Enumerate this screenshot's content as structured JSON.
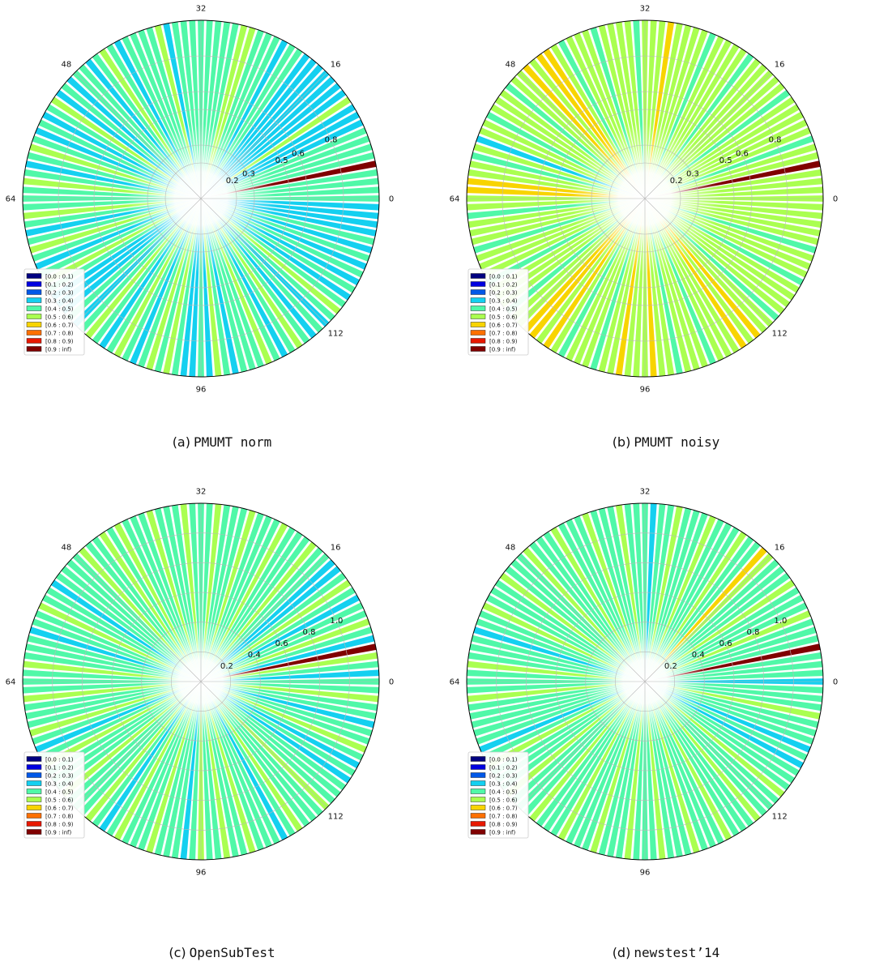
{
  "legend": {
    "entries": [
      "[0.0 : 0.1)",
      "[0.1 : 0.2)",
      "[0.2 : 0.3)",
      "[0.3 : 0.4)",
      "[0.4 : 0.5)",
      "[0.5 : 0.6)",
      "[0.6 : 0.7)",
      "[0.7 : 0.8)",
      "[0.8 : 0.9)",
      "[0.9 : inf)"
    ],
    "colors": [
      "#000080",
      "#0000e0",
      "#0058e8",
      "#14d0f0",
      "#50f8a8",
      "#aaff50",
      "#f8d400",
      "#ff7000",
      "#e81800",
      "#800000"
    ],
    "placement": "lower-left"
  },
  "chart_data": [
    {
      "type": "polar-bar",
      "caption_label": "(a)",
      "caption_code": "PMUMT norm",
      "angular_ticks": [
        "0",
        "16",
        "32",
        "48",
        "64",
        "96",
        "112"
      ],
      "angular_tick_positions": [
        0,
        16,
        32,
        48,
        64,
        96,
        112
      ],
      "radial_ticks": [
        "0.2",
        "0.3",
        "0.5",
        "0.6",
        "0.8"
      ],
      "radial_tick_values": [
        0.2,
        0.3,
        0.5,
        0.6,
        0.8
      ],
      "rmax": 1.0,
      "num_bars": 128,
      "default_bin": 4,
      "bar_bins": {
        "4": 9,
        "9": 3,
        "10": 3,
        "11": 3,
        "12": 5,
        "13": 3,
        "14": 3,
        "15": 3,
        "16": 3,
        "17": 3,
        "18": 3,
        "19": 3,
        "22": 3,
        "26": 5,
        "27": 5,
        "36": 3,
        "37": 5,
        "42": 3,
        "44": 5,
        "46": 3,
        "49": 3,
        "51": 3,
        "52": 5,
        "54": 3,
        "56": 3,
        "58": 5,
        "60": 3,
        "62": 5,
        "66": 5,
        "68": 3,
        "70": 5,
        "72": 3,
        "74": 5,
        "76": 3,
        "77": 3,
        "78": 3,
        "80": 3,
        "82": 5,
        "84": 3,
        "86": 5,
        "88": 3,
        "90": 5,
        "92": 5,
        "94": 3,
        "95": 3,
        "97": 3,
        "98": 5,
        "100": 3,
        "104": 5,
        "106": 3,
        "108": 5,
        "110": 3,
        "112": 3,
        "114": 5,
        "116": 3,
        "118": 3,
        "120": 3,
        "122": 3,
        "124": 3,
        "125": 3,
        "126": 3,
        "127": 3
      }
    },
    {
      "type": "polar-bar",
      "caption_label": "(b)",
      "caption_code": "PMUMT noisy",
      "angular_ticks": [
        "0",
        "16",
        "32",
        "48",
        "64",
        "96",
        "112"
      ],
      "angular_tick_positions": [
        0,
        16,
        32,
        48,
        64,
        96,
        112
      ],
      "radial_ticks": [
        "0.2",
        "0.3",
        "0.5",
        "0.6",
        "0.8"
      ],
      "radial_tick_values": [
        0.2,
        0.3,
        0.5,
        0.6,
        0.8
      ],
      "rmax": 1.0,
      "num_bars": 128,
      "default_bin": 5,
      "bar_bins": {
        "4": 9,
        "7": 4,
        "13": 4,
        "19": 4,
        "24": 4,
        "29": 6,
        "33": 4,
        "38": 4,
        "42": 4,
        "44": 6,
        "45": 6,
        "47": 6,
        "50": 4,
        "54": 4,
        "57": 3,
        "59": 4,
        "62": 6,
        "63": 6,
        "66": 4,
        "70": 4,
        "74": 4,
        "78": 4,
        "81": 6,
        "82": 6,
        "84": 6,
        "86": 4,
        "90": 4,
        "93": 6,
        "97": 6,
        "100": 4,
        "104": 4,
        "108": 6,
        "110": 6,
        "113": 4,
        "118": 4,
        "122": 4
      }
    },
    {
      "type": "polar-bar",
      "caption_label": "(c)",
      "caption_code": "OpenSubTest",
      "angular_ticks": [
        "0",
        "16",
        "32",
        "48",
        "64",
        "96",
        "112"
      ],
      "angular_tick_positions": [
        0,
        16,
        32,
        48,
        64,
        96,
        112
      ],
      "radial_ticks": [
        "0.2",
        "0.4",
        "0.6",
        "0.8",
        "1.0"
      ],
      "radial_tick_values": [
        0.2,
        0.4,
        0.6,
        0.8,
        1.0
      ],
      "rmax": 1.2,
      "num_bars": 128,
      "default_bin": 4,
      "bar_bins": {
        "1": 3,
        "3": 5,
        "4": 9,
        "5": 3,
        "7": 5,
        "10": 3,
        "12": 5,
        "14": 3,
        "15": 3,
        "18": 5,
        "22": 5,
        "26": 5,
        "30": 5,
        "34": 5,
        "38": 5,
        "42": 5,
        "44": 5,
        "47": 5,
        "52": 3,
        "55": 5,
        "58": 3,
        "62": 5,
        "66": 5,
        "70": 5,
        "72": 3,
        "74": 5,
        "78": 5,
        "82": 5,
        "84": 3,
        "86": 5,
        "90": 5,
        "94": 3,
        "96": 5,
        "99": 5,
        "102": 5,
        "106": 3,
        "108": 5,
        "112": 5,
        "116": 3,
        "118": 3,
        "120": 5,
        "123": 3,
        "126": 5
      }
    },
    {
      "type": "polar-bar",
      "caption_label": "(d)",
      "caption_code": "newstest’14",
      "angular_ticks": [
        "0",
        "16",
        "32",
        "48",
        "64",
        "96",
        "112"
      ],
      "angular_tick_positions": [
        0,
        16,
        32,
        48,
        64,
        96,
        112
      ],
      "radial_ticks": [
        "0.2",
        "0.4",
        "0.6",
        "0.8",
        "1.0"
      ],
      "radial_tick_values": [
        0.2,
        0.4,
        0.6,
        0.8,
        1.0
      ],
      "rmax": 1.2,
      "num_bars": 128,
      "default_bin": 4,
      "bar_bins": {
        "0": 3,
        "4": 9,
        "8": 5,
        "12": 5,
        "16": 5,
        "17": 6,
        "20": 5,
        "24": 5,
        "28": 5,
        "31": 3,
        "35": 5,
        "39": 5,
        "43": 5,
        "47": 5,
        "51": 5,
        "55": 5,
        "58": 3,
        "62": 5,
        "66": 5,
        "72": 3,
        "74": 5,
        "78": 5,
        "82": 5,
        "86": 5,
        "90": 5,
        "94": 5,
        "98": 5,
        "102": 5,
        "106": 5,
        "110": 5,
        "114": 5,
        "118": 3,
        "120": 3,
        "124": 5
      }
    }
  ]
}
